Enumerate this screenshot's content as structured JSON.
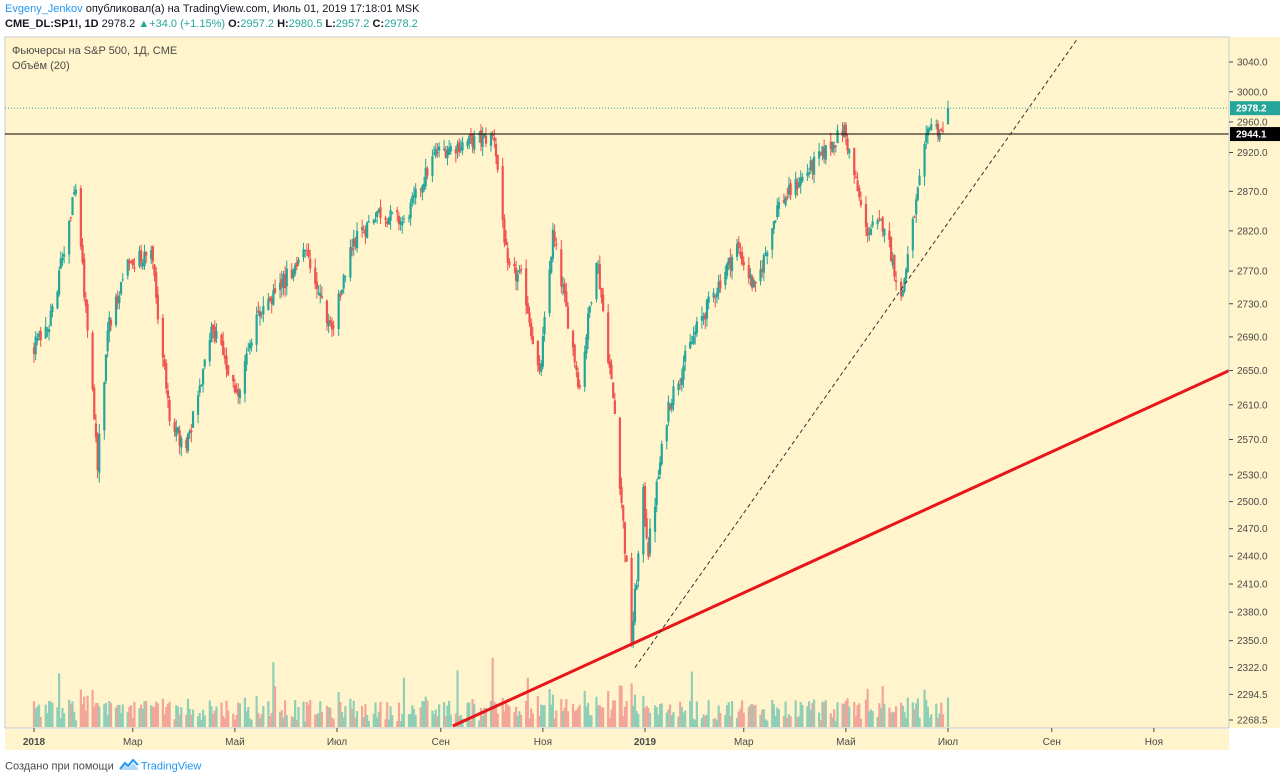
{
  "header": {
    "author": "Evgeny_Jenkov",
    "published_text": "опубликовал(а) на TradingView.com, Июль 01, 2019 17:18:01 MSK",
    "symbol": "CME_DL:SP1!, 1D",
    "last": "2978.2",
    "change": "+34.0 (+1.15%)",
    "o_label": "O:",
    "o_value": "2957.2",
    "h_label": "H:",
    "h_value": "2980.5",
    "l_label": "L:",
    "l_value": "2957.2",
    "c_label": "C:",
    "c_value": "2978.2"
  },
  "pane": {
    "title": "Фьючерсы на S&P 500, 1Д, CME",
    "volume_label": "Объём (20)"
  },
  "price_axis": {
    "ticks": [
      "3040.0",
      "3000.0",
      "2960.0",
      "2920.0",
      "2870.0",
      "2820.0",
      "2770.0",
      "2730.0",
      "2690.0",
      "2650.0",
      "2610.0",
      "2570.0",
      "2530.0",
      "2500.0",
      "2470.0",
      "2440.0",
      "2410.0",
      "2380.0",
      "2350.0",
      "2322.0",
      "2294.5",
      "2268.5"
    ],
    "last_price_badge": "2978.2",
    "level_badge": "2944.1"
  },
  "time_axis": {
    "ticks": [
      "2018",
      "Мар",
      "Май",
      "Июл",
      "Сен",
      "Ноя",
      "2019",
      "Мар",
      "Май",
      "Июл",
      "Сен",
      "Ноя"
    ]
  },
  "colors": {
    "background": "#fff4cc",
    "up": "#26a69a",
    "down": "#ef5350",
    "up_volume": "#8fcfb8",
    "down_volume": "#f4a59a",
    "trendline_red": "#e8151b",
    "level_line": "#000000",
    "last_price": "#26a69a"
  },
  "chart_data": {
    "type": "candlestick",
    "title": "Фьючерсы на S&P 500, 1Д, CME",
    "indicator": "Объём (20)",
    "x": [
      "2018-01",
      "2018-02",
      "2018-03",
      "2018-04",
      "2018-05",
      "2018-06",
      "2018-07",
      "2018-08",
      "2018-09",
      "2018-10",
      "2018-11",
      "2018-12",
      "2019-01",
      "2019-02",
      "2019-03",
      "2019-04",
      "2019-05",
      "2019-06",
      "2019-07"
    ],
    "close_path": [
      [
        "2018-01-01",
        2680
      ],
      [
        "2018-01-10",
        2700
      ],
      [
        "2018-01-26",
        2878
      ],
      [
        "2018-02-08",
        2540
      ],
      [
        "2018-02-14",
        2700
      ],
      [
        "2018-02-27",
        2780
      ],
      [
        "2018-03-12",
        2795
      ],
      [
        "2018-03-23",
        2590
      ],
      [
        "2018-04-02",
        2560
      ],
      [
        "2018-04-18",
        2700
      ],
      [
        "2018-05-03",
        2620
      ],
      [
        "2018-05-15",
        2720
      ],
      [
        "2018-06-12",
        2790
      ],
      [
        "2018-06-28",
        2700
      ],
      [
        "2018-07-10",
        2800
      ],
      [
        "2018-07-25",
        2845
      ],
      [
        "2018-08-10",
        2830
      ],
      [
        "2018-08-29",
        2920
      ],
      [
        "2018-09-20",
        2935
      ],
      [
        "2018-10-03",
        2940
      ],
      [
        "2018-10-11",
        2770
      ],
      [
        "2018-10-20",
        2760
      ],
      [
        "2018-10-30",
        2640
      ],
      [
        "2018-11-07",
        2815
      ],
      [
        "2018-11-23",
        2630
      ],
      [
        "2018-12-03",
        2790
      ],
      [
        "2018-12-14",
        2600
      ],
      [
        "2018-12-24",
        2350
      ],
      [
        "2018-12-31",
        2506
      ],
      [
        "2019-01-03",
        2447
      ],
      [
        "2019-01-15",
        2610
      ],
      [
        "2019-02-01",
        2700
      ],
      [
        "2019-02-25",
        2800
      ],
      [
        "2019-03-08",
        2745
      ],
      [
        "2019-03-21",
        2850
      ],
      [
        "2019-04-12",
        2905
      ],
      [
        "2019-04-30",
        2950
      ],
      [
        "2019-05-13",
        2820
      ],
      [
        "2019-05-24",
        2830
      ],
      [
        "2019-06-03",
        2735
      ],
      [
        "2019-06-20",
        2960
      ],
      [
        "2019-06-28",
        2944
      ],
      [
        "2019-07-01",
        2978
      ]
    ],
    "last_price": 2978.2,
    "horizontal_level": 2944.1,
    "trendline_red": {
      "from": [
        "2018-09-01",
        2268.5
      ],
      "to": [
        "2019-12-31",
        2650
      ]
    },
    "trendline_dashed": {
      "from": [
        "2018-12-26",
        2322
      ],
      "to": [
        "2019-08-20",
        3040
      ]
    },
    "ylim": [
      2255,
      3070
    ],
    "price_scale": "log"
  }
}
